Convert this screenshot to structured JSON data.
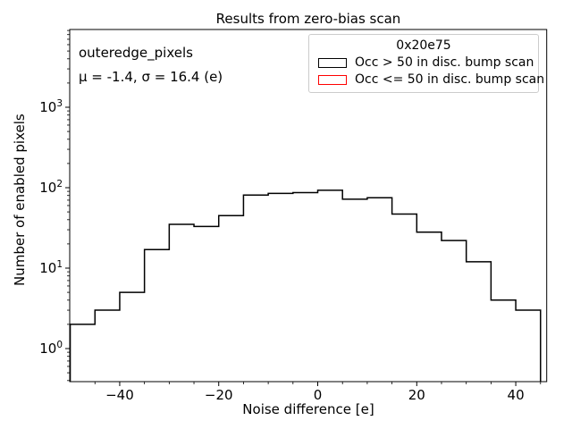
{
  "figure": {
    "title": "Results from zero-bias scan",
    "xlabel": "Noise difference [e]",
    "ylabel": "Number of enabled pixels",
    "annotation_line1": "outeredge_pixels",
    "annotation_line2": "μ = -1.4, σ = 16.4 (e)"
  },
  "legend": {
    "title": "0x20e75",
    "items": [
      {
        "label": "Occ > 50 in disc. bump scan",
        "color": "#000000"
      },
      {
        "label": "Occ <= 50 in disc. bump scan",
        "color": "#ff0000"
      }
    ]
  },
  "chart_data": {
    "type": "bar",
    "subtype": "step-histogram",
    "title": "Results from zero-bias scan",
    "xlabel": "Noise difference [e]",
    "ylabel": "Number of enabled pixels",
    "y_scale": "log",
    "grid": false,
    "legend_position": "upper right",
    "xlim": [
      -50.1,
      46.25
    ],
    "ylim": [
      0.388,
      9260
    ],
    "x_ticks": {
      "values": [
        -40,
        -20,
        0,
        20,
        40
      ],
      "labels": [
        "−40",
        "−20",
        "0",
        "20",
        "40"
      ]
    },
    "x_minor_step": 5,
    "y_major_exponents": [
      0,
      1,
      2,
      3
    ],
    "series": [
      {
        "name": "Occ > 50 in disc. bump scan",
        "color": "#000000",
        "bin_edges": [
          -50,
          -45,
          -40,
          -35,
          -30,
          -25,
          -20,
          -15,
          -10,
          -5,
          0,
          5,
          10,
          15,
          20,
          25,
          30,
          35,
          40,
          45
        ],
        "counts": [
          2,
          3,
          5,
          17,
          35,
          33,
          45,
          81,
          85,
          87,
          93,
          72,
          75,
          47,
          28,
          22,
          12,
          4,
          3
        ]
      },
      {
        "name": "Occ <= 50 in disc. bump scan",
        "color": "#ff0000",
        "bin_edges": [],
        "counts": []
      }
    ]
  },
  "colors": {
    "axis": "#000000",
    "text": "#000000",
    "legend_border": "#cccccc",
    "series_occ_gt_50": "#000000",
    "series_occ_le_50": "#ff0000"
  }
}
